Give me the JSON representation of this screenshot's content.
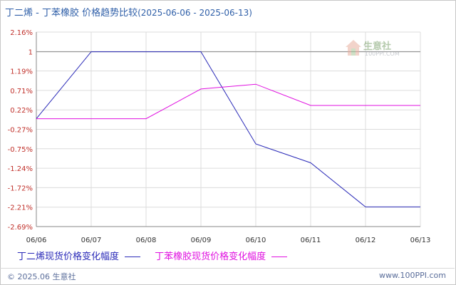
{
  "title": {
    "main": "丁二烯 - 丁苯橡胶 价格趋势比较",
    "range": "(2025-06-06 - 2025-06-13)"
  },
  "watermark": {
    "brand": "生意社",
    "site": "100PPI.COM",
    "icon": "house-logo-icon"
  },
  "chart_data": {
    "type": "line",
    "categories": [
      "06/06",
      "06/07",
      "06/08",
      "06/09",
      "06/10",
      "06/11",
      "06/12",
      "06/13"
    ],
    "y_ticks": [
      "2.16%",
      "1",
      "1.19%",
      "0.71%",
      "0.22%",
      "-0.27%",
      "-0.75%",
      "-1.24%",
      "-1.72%",
      "-2.21%",
      "-2.69%"
    ],
    "ylim": [
      -2.69,
      2.16
    ],
    "grid": true,
    "series": [
      {
        "name": "丁二烯现货价格变化幅度",
        "color": "#2a2ab8",
        "values": [
          0,
          1.67,
          1.67,
          1.67,
          -0.63,
          -1.1,
          -2.2,
          -2.2
        ]
      },
      {
        "name": "丁苯橡胶现货价格变化幅度",
        "color": "#e010e0",
        "values": [
          0,
          0,
          0,
          0.74,
          0.86,
          0.33,
          0.33,
          0.33
        ]
      }
    ],
    "legend_position": "bottom-left",
    "reference_line": 1.67
  },
  "footer": {
    "copyright": "© 2025.06 生意社",
    "url": "www.100PPI.com"
  },
  "colors": {
    "title": "#2f5fa8",
    "tick_label": "#c0302a",
    "grid": "#dcdcdc",
    "axis": "#888888"
  }
}
